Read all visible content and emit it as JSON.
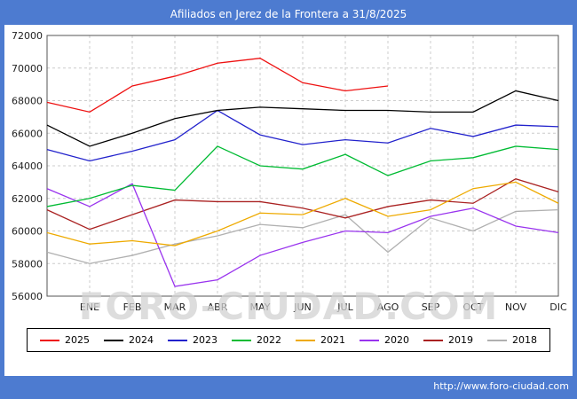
{
  "title_bar": {
    "title": "Afiliados en Jerez de la Frontera a 31/8/2025"
  },
  "watermark": "FORO-CIUDAD.COM",
  "footer": {
    "url": "http://www.foro-ciudad.com"
  },
  "chart_data": {
    "type": "line",
    "title": "Afiliados en Jerez de la Frontera a 31/8/2025",
    "categories": [
      "ENE",
      "FEB",
      "MAR",
      "ABR",
      "MAY",
      "JUN",
      "JUL",
      "AGO",
      "SEP",
      "OCT",
      "NOV",
      "DIC"
    ],
    "ylabel": "",
    "xlabel": "",
    "ylim": [
      56000,
      72000
    ],
    "ytick_step": 2000,
    "grid": true,
    "grid_style": "dashed",
    "legend_position": "bottom",
    "points_note": "first value of each series is plotted at the left axis edge before ENE; remaining values fall on the monthly gridlines",
    "series": [
      {
        "name": "2025",
        "color": "#ee1111",
        "values": [
          67900,
          67300,
          68900,
          69500,
          70300,
          70600,
          69100,
          68600,
          68900
        ]
      },
      {
        "name": "2024",
        "color": "#000000",
        "values": [
          66500,
          65200,
          66000,
          66900,
          67400,
          67600,
          67500,
          67400,
          67400,
          67300,
          67300,
          68600,
          68000
        ]
      },
      {
        "name": "2023",
        "color": "#2222cc",
        "values": [
          65000,
          64300,
          64900,
          65600,
          67400,
          65900,
          65300,
          65600,
          65400,
          66300,
          65800,
          66500,
          66400
        ]
      },
      {
        "name": "2022",
        "color": "#00bb33",
        "values": [
          61500,
          62000,
          62800,
          62500,
          65200,
          64000,
          63800,
          64700,
          63400,
          64300,
          64500,
          65200,
          65000
        ]
      },
      {
        "name": "2021",
        "color": "#eeaa00",
        "values": [
          59900,
          59200,
          59400,
          59100,
          60000,
          61100,
          61000,
          62000,
          60900,
          61300,
          62600,
          63000,
          61700
        ]
      },
      {
        "name": "2020",
        "color": "#9933ee",
        "values": [
          62600,
          61500,
          62900,
          56600,
          57000,
          58500,
          59300,
          60000,
          59900,
          60900,
          61400,
          60300,
          59900
        ]
      },
      {
        "name": "2019",
        "color": "#aa2222",
        "values": [
          61300,
          60100,
          61000,
          61900,
          61800,
          61800,
          61400,
          60800,
          61500,
          61900,
          61700,
          63200,
          62400
        ]
      },
      {
        "name": "2018",
        "color": "#b0b0b0",
        "values": [
          58700,
          58000,
          58500,
          59200,
          59700,
          60400,
          60200,
          61000,
          58700,
          60800,
          60000,
          61200,
          61300
        ]
      }
    ]
  }
}
